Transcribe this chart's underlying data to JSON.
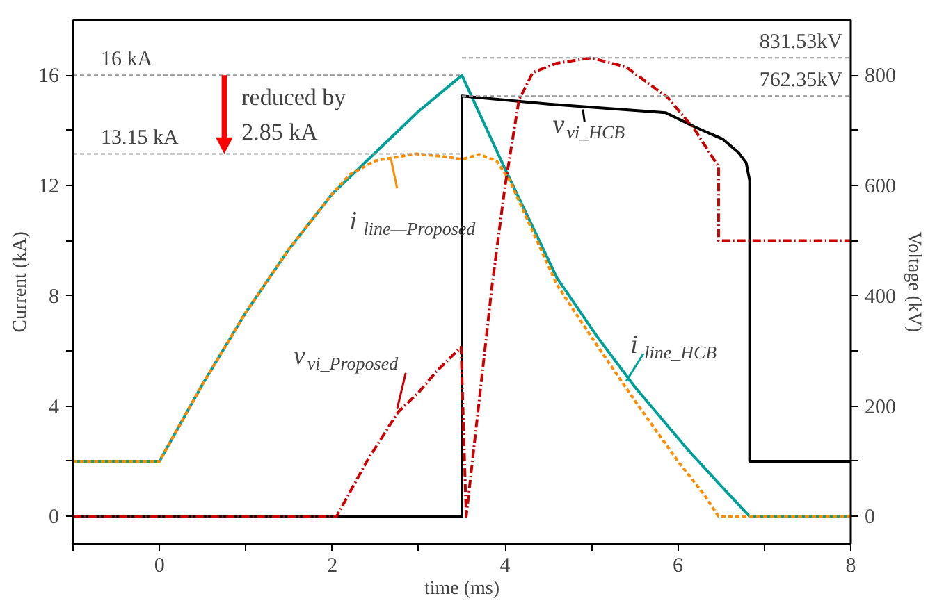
{
  "chart_data": {
    "type": "line",
    "xlabel": "time (ms)",
    "ylabel": "Current (kA)",
    "y2label": "Voltage (kV)",
    "xlim": [
      -1,
      8
    ],
    "xticks": [
      {
        "value": -1,
        "label": null
      },
      0,
      {
        "value": 1,
        "label": null
      },
      2,
      {
        "value": 3,
        "label": null
      },
      4,
      {
        "value": 5,
        "label": null
      },
      6,
      {
        "value": 7,
        "label": null
      },
      8
    ],
    "ylim": [
      -1,
      18
    ],
    "yticks": [
      0,
      {
        "value": 2,
        "label": null
      },
      4,
      {
        "value": 6,
        "label": null
      },
      8,
      {
        "value": 10,
        "label": null
      },
      12,
      {
        "value": 14,
        "label": null
      },
      16
    ],
    "y2lim": [
      -50,
      900
    ],
    "y2ticks": [
      0,
      {
        "value": 100,
        "label": null
      },
      200,
      {
        "value": 300,
        "label": null
      },
      400,
      {
        "value": 500,
        "label": null
      },
      600,
      {
        "value": 700,
        "label": null
      },
      800
    ],
    "grid": false,
    "marker": "none",
    "series": [
      {
        "name": "i$_{line_HCB}$",
        "color": "#00a09a",
        "line_style": "solid",
        "x": [
          -1,
          0,
          0.5,
          1,
          1.5,
          2,
          2.5,
          3,
          3.5,
          4,
          4.6,
          5.07,
          5.5,
          6.1,
          6.5,
          6.83,
          8
        ],
        "values": [
          2,
          2,
          4.8,
          7.4,
          9.7,
          11.7,
          13.2,
          14.7,
          16,
          12.6,
          8.65,
          6.5,
          4.7,
          2.47,
          1.1,
          0,
          0
        ]
      },
      {
        "name": "i$_{line—Proposed}$",
        "color": "#ff8c00",
        "line_style": "dashed",
        "x": [
          -1,
          0,
          0.5,
          1,
          1.5,
          2,
          2.2,
          2.5,
          2.96,
          3.3,
          3.5,
          3.7,
          3.9,
          4.05,
          4.6,
          5.0,
          5.5,
          6.0,
          6.3,
          6.47,
          8
        ],
        "values": [
          2,
          2,
          4.8,
          7.4,
          9.7,
          11.7,
          12.4,
          12.9,
          13.15,
          13.05,
          12.95,
          13.13,
          12.9,
          12.2,
          8.4,
          6.5,
          4.2,
          2.0,
          0.8,
          0,
          0
        ]
      },
      {
        "name": "v$_{vi_HCB}$",
        "color": "#000000",
        "line_style": "solid",
        "axis": "y2",
        "x": [
          -1,
          3.5,
          3.5,
          4.5,
          5.86,
          6.2,
          6.52,
          6.7,
          6.79,
          6.83,
          6.83,
          8
        ],
        "values": [
          0,
          0,
          762.35,
          748,
          732,
          706,
          684,
          660,
          641,
          609,
          100,
          100
        ]
      },
      {
        "name": "v$_{vi_Proposed}$",
        "color": "#cc0000",
        "line_style": "dashdot",
        "axis": "y2",
        "x": [
          -1,
          2.05,
          2.4,
          2.76,
          3.0,
          3.2,
          3.49,
          3.55,
          3.85,
          4.0,
          4.16,
          4.32,
          4.6,
          5.0,
          5.4,
          5.88,
          6.2,
          6.47,
          6.47,
          8
        ],
        "values": [
          0,
          0,
          100,
          189,
          225,
          262,
          307,
          0,
          420,
          600,
          755,
          805,
          822,
          831.53,
          815,
          760,
          700,
          634,
          500,
          500
        ]
      }
    ],
    "ref_lines": [
      {
        "axis": "y",
        "value": 16,
        "label": "16 kA",
        "color": "#999999",
        "line_style": "dashed"
      },
      {
        "axis": "y",
        "value": 13.15,
        "label": "13.15 kA",
        "color": "#999999",
        "line_style": "dashed"
      },
      {
        "axis": "y2",
        "value": 831.53,
        "label": "831.53kV",
        "color": "#999999",
        "line_style": "dashed"
      },
      {
        "axis": "y2",
        "value": 762.35,
        "label": "762.35kV",
        "color": "#999999",
        "line_style": "dashed"
      }
    ],
    "annotations": [
      {
        "text": "reduced by\n2.85 kA",
        "x": 0.75,
        "y": 13.15
      }
    ]
  }
}
